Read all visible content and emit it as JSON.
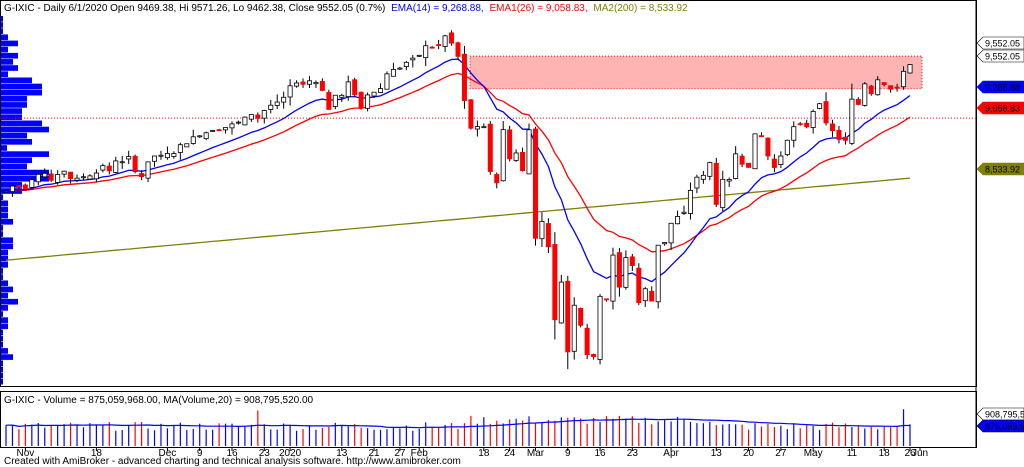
{
  "chart_data": [
    {
      "type": "candlestick",
      "symbol": "G-IXIC",
      "header": {
        "prefix": "G-IXIC - Daily 6/1/2020 Open 9469.38, Hi 9571.26, Lo 9462.38, Close 9552.05 (0.7%)",
        "ema14": "EMA(14) = 9,268.88,",
        "ema26": "EMA1(26) = 9,058.83,",
        "ma200": "MA2(200) = 8,533.92"
      },
      "colors": {
        "up": "#ffffff",
        "down": "#ff0000",
        "ema14": "#0000ff",
        "ema26": "#ff0000",
        "ma200": "#808000",
        "profile": "#0000ff",
        "zone": "#ffb4b4",
        "last": "#ffffff"
      },
      "ylim": [
        6600,
        10000
      ],
      "x_tick_labels": [
        "Nov",
        "18",
        "Dec",
        "9",
        "16",
        "23",
        "2020",
        "13",
        "21",
        "27",
        "Feb",
        "18",
        "24",
        "Mar",
        "9",
        "16",
        "23",
        "Apr",
        "13",
        "20",
        "27",
        "May",
        "11",
        "18",
        "26",
        "Jun"
      ],
      "price_tags": [
        {
          "text": "9,552.05",
          "value": 9552.05,
          "bg": "#ffffff",
          "fg": "#000000"
        },
        {
          "text": "9,552.05",
          "value": 9552.05,
          "bg": "#ffffff",
          "fg": "#000000"
        },
        {
          "text": "9,268.88",
          "value": 9268.88,
          "bg": "#0000ff",
          "fg": "#ffffff"
        },
        {
          "text": "9,058.83",
          "value": 9058.83,
          "bg": "#ff0000",
          "fg": "#ffffff"
        },
        {
          "text": "8,533.92",
          "value": 8533.92,
          "bg": "#808000",
          "fg": "#000000"
        }
      ],
      "resistance_zone": [
        9330,
        9630
      ],
      "reference_level": 9058.83,
      "close_series": [
        8386,
        8433,
        8434,
        8410,
        8492,
        8541,
        8550,
        8486,
        8540,
        8570,
        8502,
        8506,
        8519,
        8527,
        8553,
        8621,
        8573,
        8665,
        8657,
        8705,
        8566,
        8520,
        8656,
        8710,
        8717,
        8734,
        8733,
        8814,
        8823,
        8887,
        8896,
        8924,
        8945,
        8952,
        8972,
        9006,
        9022,
        9068,
        9092,
        9057,
        9129,
        9178,
        9207,
        9251,
        9357,
        9383,
        9371,
        9403,
        9388,
        9314,
        9139,
        9270,
        9269,
        9393,
        9274,
        9150,
        9273,
        9298,
        9331,
        9467,
        9508,
        9520,
        9573,
        9612,
        9638,
        9726,
        9712,
        9732,
        9817,
        9750,
        9628,
        9221,
        8966,
        8981,
        8980,
        8567,
        8463,
        8953,
        8684,
        8738,
        8575,
        8952,
        7952,
        8108,
        7874,
        7201,
        7548,
        6905,
        7335,
        7150,
        6880,
        6861,
        7417,
        7384,
        7797,
        7502,
        7774,
        7700,
        7360,
        7487,
        7373,
        7888,
        7913,
        8090,
        8153,
        8192,
        8393,
        8515,
        8532,
        8650,
        8264,
        8495,
        8494,
        8730,
        8634,
        8605,
        8914,
        8890,
        8710,
        8604,
        8710,
        8855,
        8980,
        9002,
        8979,
        9121,
        9192,
        9015,
        8943,
        8863,
        8854,
        9234,
        9185,
        9375,
        9284,
        9412,
        9368,
        9325,
        9340,
        9490,
        9553
      ],
      "volume": {
        "label": "G-IXIC - Volume = 875,059,968.00, MA(Volume,20) = 908,795,520.00",
        "tags": [
          "908,795,5",
          "875,059,9"
        ],
        "volume_colors": {
          "up": "#0000ff",
          "down": "#ff0000",
          "ma": "#0000ff"
        }
      },
      "footer": "Created with AmiBroker - advanced charting and technical analysis software. http://www.amibroker.com"
    }
  ]
}
